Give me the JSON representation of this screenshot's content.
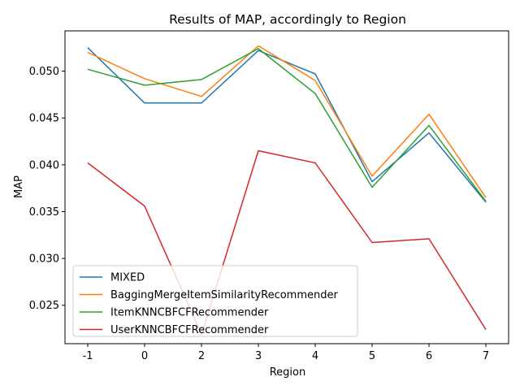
{
  "chart_data": {
    "type": "line",
    "title": "Results of MAP, accordingly to Region",
    "xlabel": "Region",
    "ylabel": "MAP",
    "categories": [
      "-1",
      "0",
      "2",
      "3",
      "4",
      "5",
      "6",
      "7"
    ],
    "ylim": [
      0.0209,
      0.0543
    ],
    "yticks": [
      0.025,
      0.03,
      0.035,
      0.04,
      0.045,
      0.05
    ],
    "ytick_labels": [
      "0.025",
      "0.030",
      "0.035",
      "0.040",
      "0.045",
      "0.050"
    ],
    "grid": false,
    "legend_position": "lower-left",
    "series": [
      {
        "name": "MIXED",
        "color": "#1f77b4",
        "values": [
          0.0525,
          0.0466,
          0.0466,
          0.0522,
          0.0497,
          0.0382,
          0.0434,
          0.036
        ]
      },
      {
        "name": "BaggingMergeItemSimilarityRecommender",
        "color": "#ff7f0e",
        "values": [
          0.052,
          0.0492,
          0.0473,
          0.0527,
          0.049,
          0.0388,
          0.0454,
          0.0365
        ]
      },
      {
        "name": "ItemKNNCBFCFRecommender",
        "color": "#2ca02c",
        "values": [
          0.0502,
          0.0485,
          0.0491,
          0.0524,
          0.0476,
          0.0376,
          0.0442,
          0.0361
        ]
      },
      {
        "name": "UserKNNCBFCFRecommender",
        "color": "#d62728",
        "values": [
          0.0402,
          0.0356,
          0.0219,
          0.0415,
          0.0402,
          0.0317,
          0.0321,
          0.0224
        ]
      }
    ]
  }
}
